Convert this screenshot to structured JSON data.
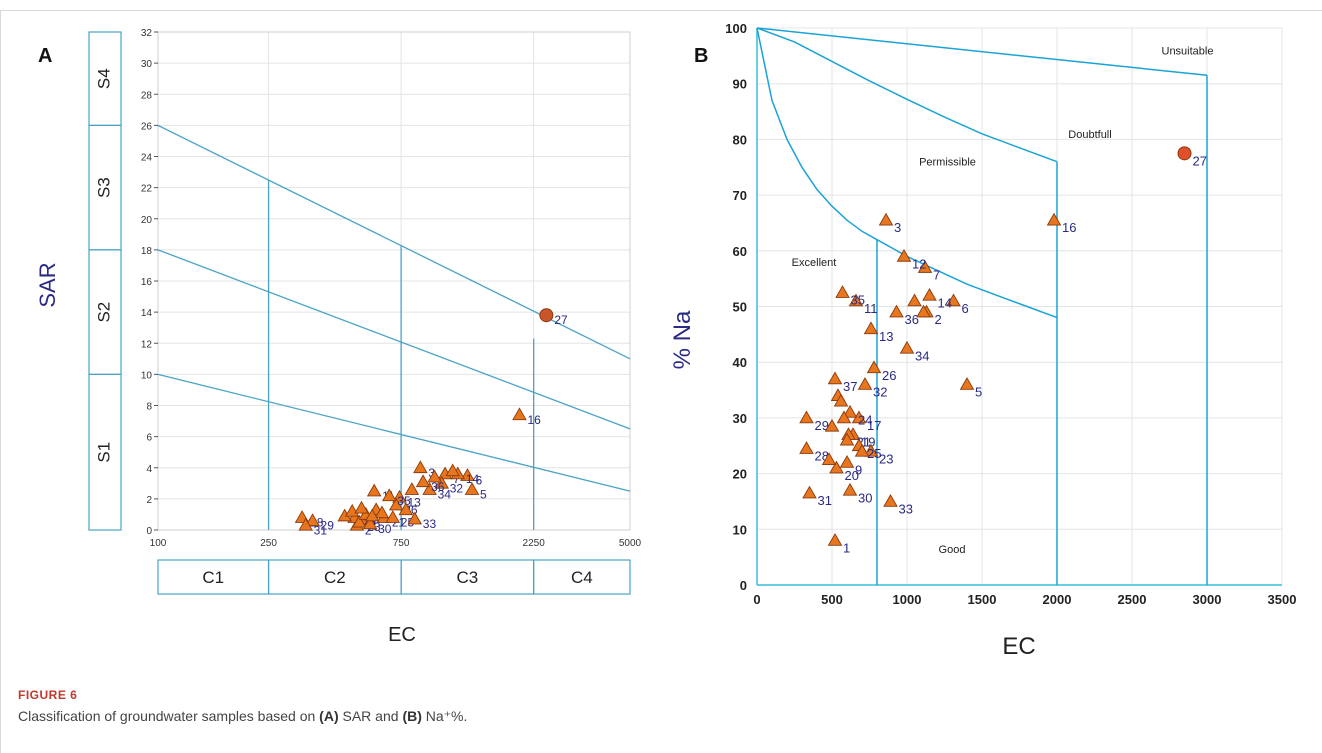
{
  "caption": {
    "label": "FIGURE 6",
    "text_1": "Classification of groundwater samples based on ",
    "bold_a": "(A)",
    "text_2": " SAR and ",
    "bold_b": "(B)",
    "text_3": " Na⁺%."
  },
  "chart_data": [
    {
      "type": "scatter",
      "panel_label": "A",
      "xlabel": "EC",
      "ylabel": "SAR",
      "x_scale": "log",
      "xlim": [
        100,
        5000
      ],
      "ylim": [
        0,
        32
      ],
      "x_ticks": [
        100,
        250,
        750,
        2250,
        5000
      ],
      "x_tick_labels": [
        "100",
        "250",
        "750",
        "2250",
        "5000"
      ],
      "y_ticks": [
        0,
        2,
        4,
        6,
        8,
        10,
        12,
        14,
        16,
        18,
        20,
        22,
        24,
        26,
        28,
        30,
        32
      ],
      "grid": true,
      "salinity_classes": [
        "C1",
        "C2",
        "C3",
        "C4"
      ],
      "sodium_classes": [
        "S1",
        "S2",
        "S3",
        "S4"
      ],
      "class_lines": [
        {
          "x": [
            100,
            5000
          ],
          "y": [
            10,
            2.5
          ]
        },
        {
          "x": [
            100,
            5000
          ],
          "y": [
            18,
            6.5
          ]
        },
        {
          "x": [
            100,
            5000
          ],
          "y": [
            26,
            11
          ]
        }
      ],
      "class_verticals": [
        250,
        750,
        2250
      ],
      "points": [
        {
          "label": "1",
          "x": 545,
          "y": 0.6
        },
        {
          "label": "2",
          "x": 520,
          "y": 0.3
        },
        {
          "label": "3",
          "x": 880,
          "y": 4.0
        },
        {
          "label": "5",
          "x": 1350,
          "y": 2.6
        },
        {
          "label": "6",
          "x": 1300,
          "y": 3.5
        },
        {
          "label": "7",
          "x": 1080,
          "y": 3.6
        },
        {
          "label": "11",
          "x": 600,
          "y": 2.5
        },
        {
          "label": "13",
          "x": 740,
          "y": 2.1
        },
        {
          "label": "14",
          "x": 1200,
          "y": 3.6
        },
        {
          "label": "16",
          "x": 2000,
          "y": 7.4
        },
        {
          "label": "20",
          "x": 510,
          "y": 0.8
        },
        {
          "label": "21",
          "x": 650,
          "y": 0.8
        },
        {
          "label": "23",
          "x": 530,
          "y": 0.5
        },
        {
          "label": "25",
          "x": 700,
          "y": 0.8
        },
        {
          "label": "26",
          "x": 720,
          "y": 1.6
        },
        {
          "label": "27",
          "x": 2500,
          "y": 13.8,
          "highlight": true
        },
        {
          "label": "28",
          "x": 330,
          "y": 0.8
        },
        {
          "label": "29",
          "x": 360,
          "y": 0.6
        },
        {
          "label": "30",
          "x": 580,
          "y": 0.4
        },
        {
          "label": "31",
          "x": 340,
          "y": 0.3
        },
        {
          "label": "32",
          "x": 1050,
          "y": 3.0
        },
        {
          "label": "33",
          "x": 840,
          "y": 0.7
        },
        {
          "label": "34",
          "x": 950,
          "y": 2.6
        },
        {
          "label": "35",
          "x": 680,
          "y": 2.2
        },
        {
          "label": "36",
          "x": 900,
          "y": 3.1
        },
        {
          "label": "",
          "x": 470,
          "y": 0.9
        },
        {
          "label": "",
          "x": 500,
          "y": 1.2
        },
        {
          "label": "",
          "x": 560,
          "y": 1.0
        },
        {
          "label": "",
          "x": 610,
          "y": 1.3
        },
        {
          "label": "",
          "x": 640,
          "y": 1.1
        },
        {
          "label": "",
          "x": 780,
          "y": 1.3
        },
        {
          "label": "",
          "x": 820,
          "y": 2.6
        },
        {
          "label": "",
          "x": 990,
          "y": 3.4
        },
        {
          "label": "",
          "x": 1150,
          "y": 3.8
        },
        {
          "label": "",
          "x": 540,
          "y": 1.4
        },
        {
          "label": "",
          "x": 590,
          "y": 0.9
        }
      ]
    },
    {
      "type": "scatter",
      "panel_label": "B",
      "xlabel": "EC",
      "ylabel": "% Na",
      "xlim": [
        0,
        3500
      ],
      "ylim": [
        0,
        100
      ],
      "x_ticks": [
        0,
        500,
        1000,
        1500,
        2000,
        2500,
        3000,
        3500
      ],
      "y_ticks": [
        0,
        10,
        20,
        30,
        40,
        50,
        60,
        70,
        80,
        90,
        100
      ],
      "grid": true,
      "region_labels": [
        {
          "text": "Unsuitable",
          "x": 2870,
          "y": 96
        },
        {
          "text": "Doubtfull",
          "x": 2220,
          "y": 81
        },
        {
          "text": "Permissible",
          "x": 1270,
          "y": 76
        },
        {
          "text": "Excellent",
          "x": 380,
          "y": 58
        },
        {
          "text": "Good",
          "x": 1300,
          "y": 6.5
        }
      ],
      "boundaries": [
        {
          "x": [
            0,
            100,
            200,
            300,
            400,
            500,
            600,
            700,
            800,
            900,
            1000,
            1200,
            1400,
            1600,
            1800,
            2000
          ],
          "y": [
            100,
            87,
            80,
            75,
            71,
            68,
            65.5,
            63.5,
            62,
            60.5,
            59,
            56.5,
            54,
            52,
            50,
            48
          ]
        },
        {
          "x": [
            0,
            250,
            500,
            750,
            1000,
            1250,
            1500,
            1750,
            2000
          ],
          "y": [
            100,
            97.5,
            94,
            90.5,
            87.2,
            84,
            81,
            78.5,
            76
          ]
        },
        {
          "x": [
            0,
            3000
          ],
          "y": [
            100,
            91.5
          ]
        },
        {
          "x": [
            800,
            800
          ],
          "y": [
            0,
            62
          ]
        },
        {
          "x": [
            2000,
            2000
          ],
          "y": [
            0,
            76
          ]
        },
        {
          "x": [
            3000,
            3000
          ],
          "y": [
            0,
            91.5
          ]
        }
      ],
      "points": [
        {
          "label": "1",
          "x": 520,
          "y": 8
        },
        {
          "label": "2",
          "x": 1130,
          "y": 49
        },
        {
          "label": "3",
          "x": 860,
          "y": 65.5
        },
        {
          "label": "5",
          "x": 1400,
          "y": 36
        },
        {
          "label": "6",
          "x": 1310,
          "y": 51
        },
        {
          "label": "7",
          "x": 1120,
          "y": 57
        },
        {
          "label": "9",
          "x": 600,
          "y": 22
        },
        {
          "label": "11",
          "x": 660,
          "y": 51
        },
        {
          "label": "12",
          "x": 980,
          "y": 59
        },
        {
          "label": "13",
          "x": 760,
          "y": 46
        },
        {
          "label": "14",
          "x": 1150,
          "y": 52
        },
        {
          "label": "16",
          "x": 1980,
          "y": 65.5
        },
        {
          "label": "17",
          "x": 680,
          "y": 30
        },
        {
          "label": "19",
          "x": 640,
          "y": 27
        },
        {
          "label": "20",
          "x": 530,
          "y": 21
        },
        {
          "label": "21",
          "x": 610,
          "y": 27
        },
        {
          "label": "23",
          "x": 760,
          "y": 24
        },
        {
          "label": "24",
          "x": 620,
          "y": 31
        },
        {
          "label": "25",
          "x": 680,
          "y": 25
        },
        {
          "label": "26",
          "x": 780,
          "y": 39
        },
        {
          "label": "27",
          "x": 2850,
          "y": 77.5,
          "highlight": true
        },
        {
          "label": "28",
          "x": 330,
          "y": 24.5
        },
        {
          "label": "29",
          "x": 330,
          "y": 30
        },
        {
          "label": "30",
          "x": 620,
          "y": 17
        },
        {
          "label": "31",
          "x": 350,
          "y": 16.5
        },
        {
          "label": "32",
          "x": 720,
          "y": 36
        },
        {
          "label": "33",
          "x": 890,
          "y": 15
        },
        {
          "label": "34",
          "x": 1000,
          "y": 42.5
        },
        {
          "label": "35",
          "x": 570,
          "y": 52.5
        },
        {
          "label": "36",
          "x": 930,
          "y": 49
        },
        {
          "label": "37",
          "x": 520,
          "y": 37
        },
        {
          "label": "",
          "x": 540,
          "y": 34
        },
        {
          "label": "",
          "x": 560,
          "y": 33
        },
        {
          "label": "",
          "x": 580,
          "y": 30
        },
        {
          "label": "",
          "x": 600,
          "y": 26
        },
        {
          "label": "",
          "x": 500,
          "y": 28.5
        },
        {
          "label": "",
          "x": 480,
          "y": 22.5
        },
        {
          "label": "",
          "x": 700,
          "y": 24
        },
        {
          "label": "",
          "x": 1050,
          "y": 51
        },
        {
          "label": "",
          "x": 1110,
          "y": 49
        }
      ]
    }
  ]
}
